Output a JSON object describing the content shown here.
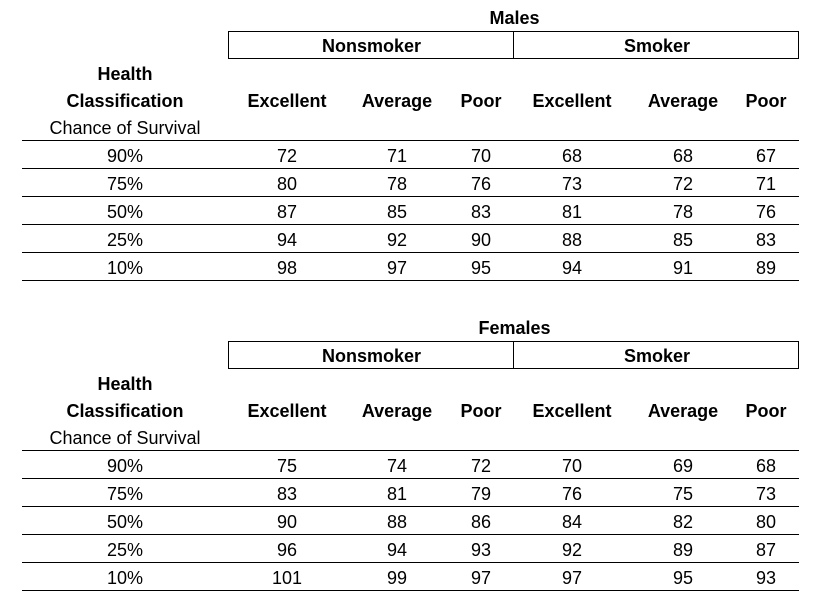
{
  "tables": [
    {
      "title": "Males",
      "groups": [
        "Nonsmoker",
        "Smoker"
      ],
      "row_header": [
        "Health",
        "Classification",
        "Chance of Survival"
      ],
      "columns": [
        "Excellent",
        "Average",
        "Poor",
        "Excellent",
        "Average",
        "Poor"
      ],
      "rows": [
        {
          "label": "90%",
          "values": [
            "72",
            "71",
            "70",
            "68",
            "68",
            "67"
          ]
        },
        {
          "label": "75%",
          "values": [
            "80",
            "78",
            "76",
            "73",
            "72",
            "71"
          ]
        },
        {
          "label": "50%",
          "values": [
            "87",
            "85",
            "83",
            "81",
            "78",
            "76"
          ]
        },
        {
          "label": "25%",
          "values": [
            "94",
            "92",
            "90",
            "88",
            "85",
            "83"
          ]
        },
        {
          "label": "10%",
          "values": [
            "98",
            "97",
            "95",
            "94",
            "91",
            "89"
          ]
        }
      ]
    },
    {
      "title": "Females",
      "groups": [
        "Nonsmoker",
        "Smoker"
      ],
      "row_header": [
        "Health",
        "Classification",
        "Chance of Survival"
      ],
      "columns": [
        "Excellent",
        "Average",
        "Poor",
        "Excellent",
        "Average",
        "Poor"
      ],
      "rows": [
        {
          "label": "90%",
          "values": [
            "75",
            "74",
            "72",
            "70",
            "69",
            "68"
          ]
        },
        {
          "label": "75%",
          "values": [
            "83",
            "81",
            "79",
            "76",
            "75",
            "73"
          ]
        },
        {
          "label": "50%",
          "values": [
            "90",
            "88",
            "86",
            "84",
            "82",
            "80"
          ]
        },
        {
          "label": "25%",
          "values": [
            "96",
            "94",
            "93",
            "92",
            "89",
            "87"
          ]
        },
        {
          "label": "10%",
          "values": [
            "101",
            "99",
            "97",
            "97",
            "95",
            "93"
          ]
        }
      ]
    }
  ]
}
